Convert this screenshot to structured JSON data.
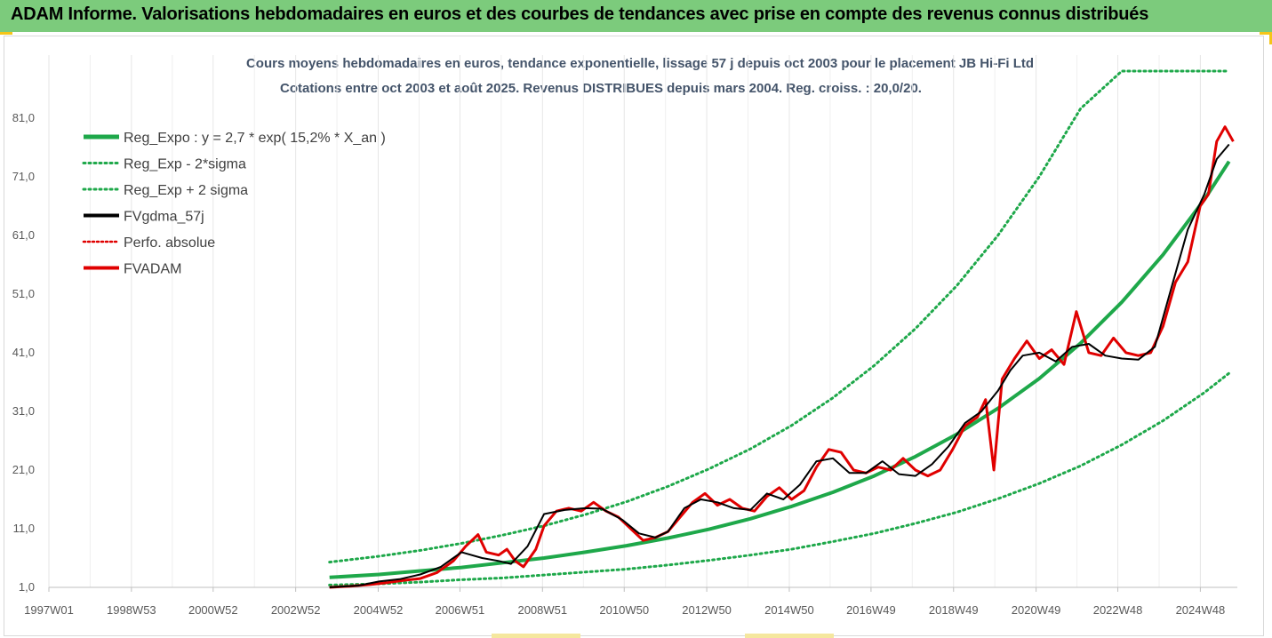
{
  "header": {
    "title": "ADAM Informe. Valorisations hebdomadaires en euros et des courbes de tendances avec prise en compte des revenus connus distribués"
  },
  "colors": {
    "header_bg": "#7ccb7c",
    "trend": "#1ea84a",
    "band": "#1ea84a",
    "smoothed": "#000000",
    "perf": "#e00000",
    "fvadam": "#e00000",
    "accent": "#f5c518"
  },
  "chart_data": {
    "type": "line",
    "title_line1": "Cours moyens hebdomadaires en euros, tendance exponentielle, lissage 57 j depuis oct 2003 pour le placement JB Hi-Fi Ltd",
    "title_line2": "Cotations entre oct 2003 et août 2025. Revenus DISTRIBUES depuis mars 2004. Reg. croiss. : 20,0/20.",
    "y_ticks": [
      "1,0",
      "11,0",
      "21,0",
      "31,0",
      "41,0",
      "51,0",
      "61,0",
      "71,0",
      "81,0"
    ],
    "ylim": [
      1,
      89
    ],
    "x_ticks": [
      "1997W01",
      "1998W53",
      "2000W52",
      "2002W52",
      "2004W52",
      "2006W51",
      "2008W51",
      "2010W50",
      "2012W50",
      "2014W50",
      "2016W49",
      "2018W49",
      "2020W49",
      "2022W48",
      "2024W48"
    ],
    "xlim": [
      1997.0,
      2025.8
    ],
    "legend": [
      {
        "label": "Reg_Expo : y = 2,7 * exp( 15,2% *  X_an )",
        "style": "solid-green"
      },
      {
        "label": "Reg_Exp - 2*sigma",
        "style": "dotted-green"
      },
      {
        "label": "Reg_Exp + 2 sigma",
        "style": "dotted-green"
      },
      {
        "label": "FVgdma_57j",
        "style": "solid-black"
      },
      {
        "label": "Perfo. absolue",
        "style": "dotted-red"
      },
      {
        "label": "FVADAM",
        "style": "solid-red"
      }
    ],
    "series": [
      {
        "name": "Reg_Expo : y = 2,7 * exp( 15,2% *  X_an )",
        "x": [
          2003.8,
          2005,
          2006,
          2007,
          2008,
          2009,
          2010,
          2011,
          2012,
          2013,
          2014,
          2015,
          2016,
          2017,
          2018,
          2019,
          2020,
          2021,
          2022,
          2023,
          2024,
          2025,
          2025.6
        ],
        "values": [
          2.7,
          3.2,
          3.8,
          4.4,
          5.2,
          6.0,
          7.0,
          8.1,
          9.4,
          10.9,
          12.7,
          14.8,
          17.2,
          20.0,
          23.3,
          27.1,
          31.5,
          36.6,
          42.6,
          49.6,
          57.7,
          67.1,
          73.6
        ]
      },
      {
        "name": "Reg_Exp - 2*sigma",
        "x": [
          2003.8,
          2005,
          2006,
          2007,
          2008,
          2009,
          2010,
          2011,
          2012,
          2013,
          2014,
          2015,
          2016,
          2017,
          2018,
          2019,
          2020,
          2021,
          2022,
          2023,
          2024,
          2025,
          2025.6
        ],
        "values": [
          1.4,
          1.6,
          1.9,
          2.3,
          2.6,
          3.1,
          3.6,
          4.1,
          4.8,
          5.6,
          6.5,
          7.5,
          8.8,
          10.2,
          11.9,
          13.8,
          16.1,
          18.7,
          21.7,
          25.3,
          29.4,
          34.2,
          37.5
        ]
      },
      {
        "name": "Reg_Exp + 2 sigma",
        "x": [
          2003.8,
          2005,
          2006,
          2007,
          2008,
          2009,
          2010,
          2011,
          2012,
          2013,
          2014,
          2015,
          2016,
          2017,
          2018,
          2019,
          2020,
          2021,
          2022,
          2023,
          2024,
          2025,
          2025.6
        ],
        "values": [
          5.3,
          6.3,
          7.3,
          8.5,
          9.9,
          11.5,
          13.4,
          15.6,
          18.2,
          21.2,
          24.6,
          28.6,
          33.3,
          38.8,
          45.1,
          52.4,
          61.0,
          71.0,
          82.6,
          89,
          89,
          89,
          89
        ]
      },
      {
        "name": "FVgdma_57j",
        "x": [
          2003.8,
          2004.5,
          2005.0,
          2005.5,
          2006.0,
          2006.5,
          2007.0,
          2007.5,
          2007.9,
          2008.2,
          2008.6,
          2009.0,
          2009.5,
          2010.0,
          2010.4,
          2010.9,
          2011.3,
          2011.7,
          2012.0,
          2012.4,
          2012.8,
          2013.2,
          2013.6,
          2014.0,
          2014.4,
          2014.8,
          2015.2,
          2015.6,
          2016.0,
          2016.4,
          2016.8,
          2017.2,
          2017.6,
          2018.0,
          2018.4,
          2018.8,
          2019.2,
          2019.6,
          2020.0,
          2020.3,
          2020.6,
          2021.0,
          2021.4,
          2021.8,
          2022.2,
          2022.6,
          2023.0,
          2023.4,
          2023.8,
          2024.2,
          2024.6,
          2025.0,
          2025.3,
          2025.6
        ],
        "values": [
          1.0,
          1.3,
          2.0,
          2.4,
          3.2,
          4.5,
          7.0,
          6.0,
          5.5,
          5.0,
          8.0,
          13.5,
          14.2,
          14.5,
          14.4,
          12.5,
          10.2,
          9.5,
          10.5,
          14.5,
          16.0,
          15.5,
          14.5,
          14.2,
          17.0,
          16.0,
          18.5,
          22.5,
          23.0,
          20.5,
          20.5,
          22.5,
          20.3,
          20.0,
          22.0,
          25.0,
          29.0,
          31.0,
          34.5,
          38.0,
          40.5,
          41.0,
          39.5,
          42.0,
          42.5,
          40.5,
          40.0,
          39.8,
          42.0,
          52.0,
          62.0,
          68.0,
          74.0,
          76.5
        ]
      },
      {
        "name": "FVADAM",
        "x": [
          2003.8,
          2004.3,
          2004.8,
          2005.2,
          2005.6,
          2006.0,
          2006.4,
          2006.8,
          2007.1,
          2007.4,
          2007.6,
          2007.9,
          2008.1,
          2008.3,
          2008.5,
          2008.8,
          2009.0,
          2009.3,
          2009.6,
          2009.9,
          2010.2,
          2010.5,
          2010.8,
          2011.1,
          2011.4,
          2011.7,
          2012.0,
          2012.3,
          2012.6,
          2012.9,
          2013.2,
          2013.5,
          2013.8,
          2014.1,
          2014.4,
          2014.7,
          2015.0,
          2015.3,
          2015.6,
          2015.9,
          2016.2,
          2016.5,
          2016.8,
          2017.1,
          2017.4,
          2017.7,
          2018.0,
          2018.3,
          2018.6,
          2018.9,
          2019.2,
          2019.5,
          2019.7,
          2019.9,
          2020.1,
          2020.4,
          2020.7,
          2021.0,
          2021.3,
          2021.6,
          2021.9,
          2022.2,
          2022.5,
          2022.8,
          2023.1,
          2023.4,
          2023.7,
          2024.0,
          2024.3,
          2024.6,
          2024.9,
          2025.1,
          2025.3,
          2025.5,
          2025.7
        ],
        "values": [
          1.0,
          1.2,
          1.5,
          1.8,
          2.2,
          2.5,
          3.5,
          5.5,
          8.0,
          10.0,
          7.0,
          6.5,
          7.5,
          5.5,
          4.5,
          7.5,
          11.5,
          14.0,
          14.5,
          14.0,
          15.5,
          14.0,
          13.0,
          11.0,
          9.0,
          9.5,
          10.5,
          13.0,
          15.5,
          17.0,
          15.0,
          16.0,
          14.5,
          14.0,
          16.5,
          18.0,
          16.0,
          17.5,
          21.5,
          24.5,
          24.0,
          21.0,
          20.5,
          21.5,
          21.0,
          23.0,
          21.0,
          20.0,
          21.0,
          24.5,
          28.5,
          30.0,
          33.0,
          21.0,
          36.5,
          40.0,
          43.0,
          40.0,
          41.5,
          39.0,
          48.0,
          41.0,
          40.5,
          43.5,
          41.0,
          40.5,
          41.0,
          45.5,
          53.0,
          56.5,
          66.0,
          68.0,
          77.0,
          79.5,
          77.0
        ]
      }
    ]
  }
}
